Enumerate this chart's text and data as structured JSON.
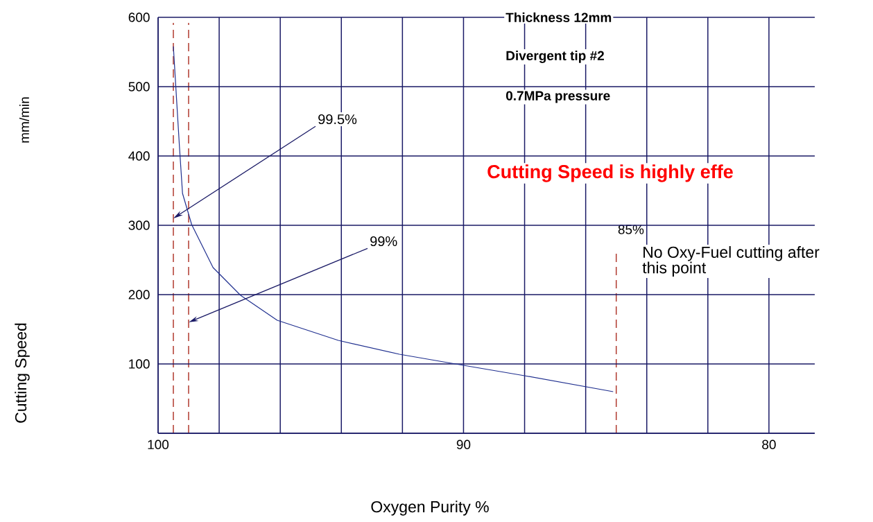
{
  "chart_data": {
    "type": "line",
    "xlabel": "Oxygen Purity %",
    "xlim": [
      100,
      78.5
    ],
    "ylim": [
      0,
      600
    ],
    "xticks": [
      100,
      {
        "value": 98,
        "label": null
      },
      {
        "value": 96,
        "label": null
      },
      {
        "value": 94,
        "label": null
      },
      {
        "value": 92,
        "label": null
      },
      90,
      {
        "value": 88,
        "label": null
      },
      {
        "value": 86,
        "label": null
      },
      {
        "value": 84,
        "label": null
      },
      {
        "value": 82,
        "label": null
      },
      80
    ],
    "yticks": [
      {
        "value": 0,
        "label": null
      },
      100,
      200,
      300,
      400,
      500,
      600
    ],
    "grid": true,
    "series": [
      {
        "color": "#1f2f8f",
        "x": [
          99.5,
          99.3,
          99.2,
          98.9,
          98.2,
          97.3,
          96.1,
          94.1,
          92.1,
          90.0,
          88.0,
          85.1
        ],
        "values": [
          558,
          413,
          346,
          301,
          239,
          199,
          163,
          134,
          114,
          98,
          83,
          60
        ]
      }
    ],
    "ref_lines": [
      {
        "axis": "x",
        "value": 99.5,
        "color": "#b03a2e",
        "line_style": "dashed"
      },
      {
        "axis": "x",
        "value": 99,
        "color": "#b03a2e",
        "line_style": "dashed"
      },
      {
        "axis": "x",
        "value": 85,
        "label": "85%",
        "color": "#b03a2e",
        "line_style": "dashed"
      }
    ],
    "annotations": [
      "Thickness 12mm",
      "Divergent  tip #2",
      "0.7MPa pressure",
      "Cutting Speed is highly effe",
      "No Oxy-Fuel cutting after this point",
      "mm/min",
      {
        "text": "99.5%",
        "x": 99.5,
        "y": 310
      },
      {
        "text": "99%",
        "x": 99,
        "y": 160
      },
      "Cutting Speed"
    ]
  }
}
